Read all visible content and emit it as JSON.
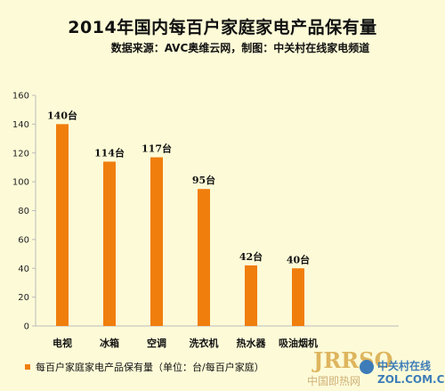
{
  "colors": {
    "bar": "#f07e0c",
    "background": "#fdfbd7",
    "axis": "#bbbbbb"
  },
  "chart_data": {
    "type": "bar",
    "title": "2014年国内每百户家庭家电产品保有量",
    "subtitle": "数据来源：AVC奥维云网，制图：中关村在线家电频道",
    "categories": [
      "电视",
      "冰箱",
      "空调",
      "洗衣机",
      "热水器",
      "吸油烟机"
    ],
    "series": [
      {
        "name": "每百户家庭家电产品保有量（单位：台/每百户家庭）",
        "values": [
          140,
          114,
          117,
          95,
          42,
          40
        ]
      }
    ],
    "data_labels": [
      "140台",
      "114台",
      "117台",
      "95台",
      "42台",
      "40台"
    ],
    "ylim": [
      0,
      160
    ],
    "yticks": [
      0,
      20,
      40,
      60,
      80,
      100,
      120,
      140,
      160
    ],
    "grid": false,
    "legend": "bottom-left"
  },
  "watermark": {
    "logo_text": "JRRSO",
    "site_cn": "中关村在线",
    "site_url": "ZOL.COM.CN",
    "caption": "中国即热网"
  }
}
